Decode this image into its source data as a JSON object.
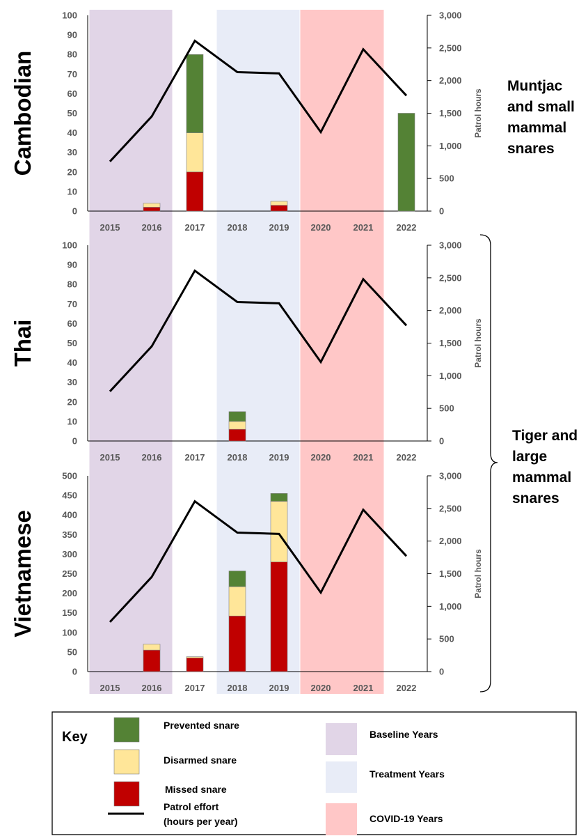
{
  "chart_data": [
    {
      "type": "bar",
      "stacked": true,
      "panel_label": "Cambodian",
      "side_note": [
        "Muntjac",
        "and small",
        "mammal",
        "snares"
      ],
      "categories": [
        "2015",
        "2016",
        "2017",
        "2018",
        "2019",
        "2020",
        "2021",
        "2022"
      ],
      "series": [
        {
          "name": "Missed snare",
          "color": "#c00000",
          "values": [
            0,
            2,
            20,
            0,
            3,
            0,
            0,
            0
          ]
        },
        {
          "name": "Disarmed snare",
          "color": "#ffe699",
          "values": [
            0,
            2,
            20,
            0,
            2,
            0,
            0,
            0
          ]
        },
        {
          "name": "Prevented snare",
          "color": "#548235",
          "values": [
            0,
            0,
            40,
            0,
            0,
            0,
            0,
            50
          ]
        }
      ],
      "line": {
        "name": "Patrol effort (hours per year)",
        "color": "#000000",
        "values": [
          760,
          1450,
          2610,
          2130,
          2110,
          1210,
          2480,
          1770
        ]
      },
      "ylim": [
        0,
        100
      ],
      "yticks": [
        "0",
        "10",
        "20",
        "30",
        "40",
        "50",
        "60",
        "70",
        "80",
        "90",
        "100"
      ],
      "y2lim": [
        0,
        3000
      ],
      "y2ticks": [
        "0",
        "500",
        "1,000",
        "1,500",
        "2,000",
        "2,500",
        "3,000"
      ],
      "y2label": "Patrol hours",
      "grid": false
    },
    {
      "type": "bar",
      "stacked": true,
      "panel_label": "Thai",
      "categories": [
        "2015",
        "2016",
        "2017",
        "2018",
        "2019",
        "2020",
        "2021",
        "2022"
      ],
      "series": [
        {
          "name": "Missed snare",
          "color": "#c00000",
          "values": [
            0,
            0,
            0,
            6,
            0,
            0,
            0,
            0
          ]
        },
        {
          "name": "Disarmed snare",
          "color": "#ffe699",
          "values": [
            0,
            0,
            0,
            4,
            0,
            0,
            0,
            0
          ]
        },
        {
          "name": "Prevented snare",
          "color": "#548235",
          "values": [
            0,
            0,
            0,
            5,
            0,
            0,
            0,
            0
          ]
        }
      ],
      "line": {
        "name": "Patrol effort (hours per year)",
        "color": "#000000",
        "values": [
          760,
          1450,
          2610,
          2130,
          2110,
          1210,
          2480,
          1770
        ]
      },
      "ylim": [
        0,
        100
      ],
      "yticks": [
        "0",
        "10",
        "20",
        "30",
        "40",
        "50",
        "60",
        "70",
        "80",
        "90",
        "100"
      ],
      "y2lim": [
        0,
        3000
      ],
      "y2ticks": [
        "0",
        "500",
        "1,000",
        "1,500",
        "2,000",
        "2,500",
        "3,000"
      ],
      "y2label": "Patrol hours",
      "grid": false
    },
    {
      "type": "bar",
      "stacked": true,
      "panel_label": "Vietnamese",
      "categories": [
        "2015",
        "2016",
        "2017",
        "2018",
        "2019",
        "2020",
        "2021",
        "2022"
      ],
      "series": [
        {
          "name": "Missed snare",
          "color": "#c00000",
          "values": [
            0,
            55,
            35,
            142,
            280,
            0,
            0,
            0
          ]
        },
        {
          "name": "Disarmed snare",
          "color": "#ffe699",
          "values": [
            0,
            15,
            3,
            75,
            155,
            0,
            0,
            0
          ]
        },
        {
          "name": "Prevented snare",
          "color": "#548235",
          "values": [
            0,
            0,
            0,
            40,
            20,
            0,
            0,
            0
          ]
        }
      ],
      "line": {
        "name": "Patrol effort (hours per year)",
        "color": "#000000",
        "values": [
          760,
          1450,
          2610,
          2130,
          2110,
          1210,
          2480,
          1770
        ]
      },
      "ylim": [
        0,
        500
      ],
      "yticks": [
        "0",
        "50",
        "100",
        "150",
        "200",
        "250",
        "300",
        "350",
        "400",
        "450",
        "500"
      ],
      "y2lim": [
        0,
        3000
      ],
      "y2ticks": [
        "0",
        "500",
        "1,000",
        "1,500",
        "2,000",
        "2,500",
        "3,000"
      ],
      "y2label": "Patrol hours",
      "grid": false
    }
  ],
  "bracket_note": [
    "Tiger and",
    "large",
    "mammal",
    "snares"
  ],
  "year_bands": [
    {
      "name": "Baseline Years",
      "color": "#e1d5e7",
      "categories": [
        "2015",
        "2016"
      ]
    },
    {
      "name": "Treatment Years",
      "color": "#e8ecf7",
      "categories": [
        "2018",
        "2019"
      ]
    },
    {
      "name": "COVID-19 Years",
      "color": "#ffc7c7",
      "categories": [
        "2020",
        "2021"
      ]
    }
  ],
  "key": {
    "title": "Key",
    "items": [
      {
        "label": [
          "Prevented snare"
        ],
        "color": "#548235",
        "kind": "swatch"
      },
      {
        "label": [
          "Disarmed snare"
        ],
        "color": "#ffe699",
        "kind": "swatch"
      },
      {
        "label": [
          "Missed snare"
        ],
        "color": "#c00000",
        "kind": "swatch"
      },
      {
        "label": [
          "Patrol effort",
          "(hours per year)"
        ],
        "color": "#000000",
        "kind": "line"
      },
      {
        "label": [
          "Baseline Years"
        ],
        "color": "#e1d5e7",
        "kind": "band"
      },
      {
        "label": [
          "Treatment Years"
        ],
        "color": "#e8ecf7",
        "kind": "band"
      },
      {
        "label": [
          "COVID-19 Years"
        ],
        "color": "#ffc7c7",
        "kind": "band"
      }
    ]
  }
}
